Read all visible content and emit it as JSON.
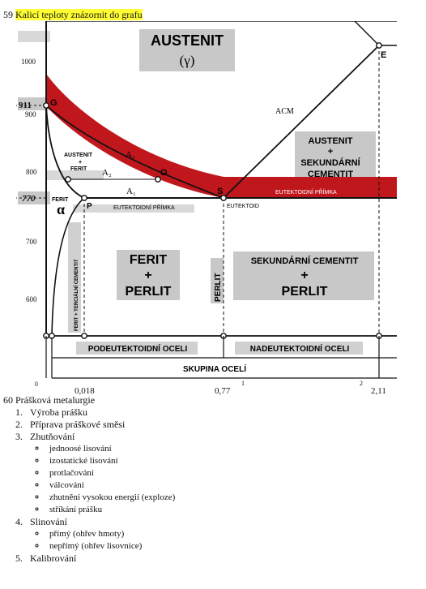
{
  "q59": {
    "number": "59",
    "title": "Kalicí teploty znázornit do grafu"
  },
  "diagram": {
    "phase_austenit": "AUSTENIT",
    "phase_gamma": "(γ)",
    "y_ticks": [
      "1000",
      "911",
      "900",
      "800",
      "770",
      "700",
      "600"
    ],
    "x_ticks": [
      "0",
      "0,018",
      "0,77",
      "1",
      "2",
      "2,11"
    ],
    "points": {
      "G": "G",
      "E": "E",
      "O": "O",
      "S": "S",
      "P": "P"
    },
    "lines": {
      "a3": "A₃",
      "a2": "A₂",
      "a1": "A₁",
      "acm": "ACM"
    },
    "regions": {
      "austenit_ferit_1": "AUSTENIT",
      "austenit_ferit_2": "+",
      "austenit_ferit_3": "FERIT",
      "aust_cem_1": "AUSTENIT",
      "aust_cem_2": "+",
      "aust_cem_3": "SEKUNDÁRNÍ",
      "aust_cem_4": "CEMENTIT",
      "ferit": "FERIT",
      "alpha": "α",
      "ferit_perlit_1": "FERIT",
      "ferit_perlit_2": "+",
      "ferit_perlit_3": "PERLIT",
      "perlit_vertical": "PERLIT",
      "cem_perlit_1": "SEKUNDÁRNÍ CEMENTIT",
      "cem_perlit_2": "+",
      "cem_perlit_3": "PERLIT",
      "ferit_terc": "FERIT + TERCIÁLNÍ CEMENTIT"
    },
    "line_labels": {
      "eutektoidni_left": "EUTEKTOIDNÍ PŘÍMKA",
      "eutektoidni_right": "EUTEKTOIDNÍ PŘÍMKA",
      "eutektoid": "EUTEKTOID"
    },
    "groups": {
      "podeutektoidni": "PODEUTEKTOIDNÍ OCELI",
      "nadeutektoidni": "NADEUTEKTOIDNÍ OCELI",
      "skupina": "SKUPINA OCELÍ"
    },
    "colors": {
      "band": "#c0171d",
      "gray": "#c8c8c8"
    }
  },
  "q60": {
    "number": "60",
    "title": "Prášková metalurgie",
    "items": [
      {
        "label": "Výroba prášku",
        "sub": []
      },
      {
        "label": "Příprava práškové směsi",
        "sub": []
      },
      {
        "label": "Zhutňování",
        "sub": [
          "jednoosé lisování",
          "izostatické lisování",
          "protlačování",
          "válcování",
          "zhutnění vysokou energií (exploze)",
          "stříkání prášku"
        ]
      },
      {
        "label": "Slinování",
        "sub": [
          "přímý (ohřev hmoty)",
          "nepřímý (ohřev lisovnice)"
        ]
      },
      {
        "label": "Kalibrování",
        "sub": []
      }
    ]
  }
}
